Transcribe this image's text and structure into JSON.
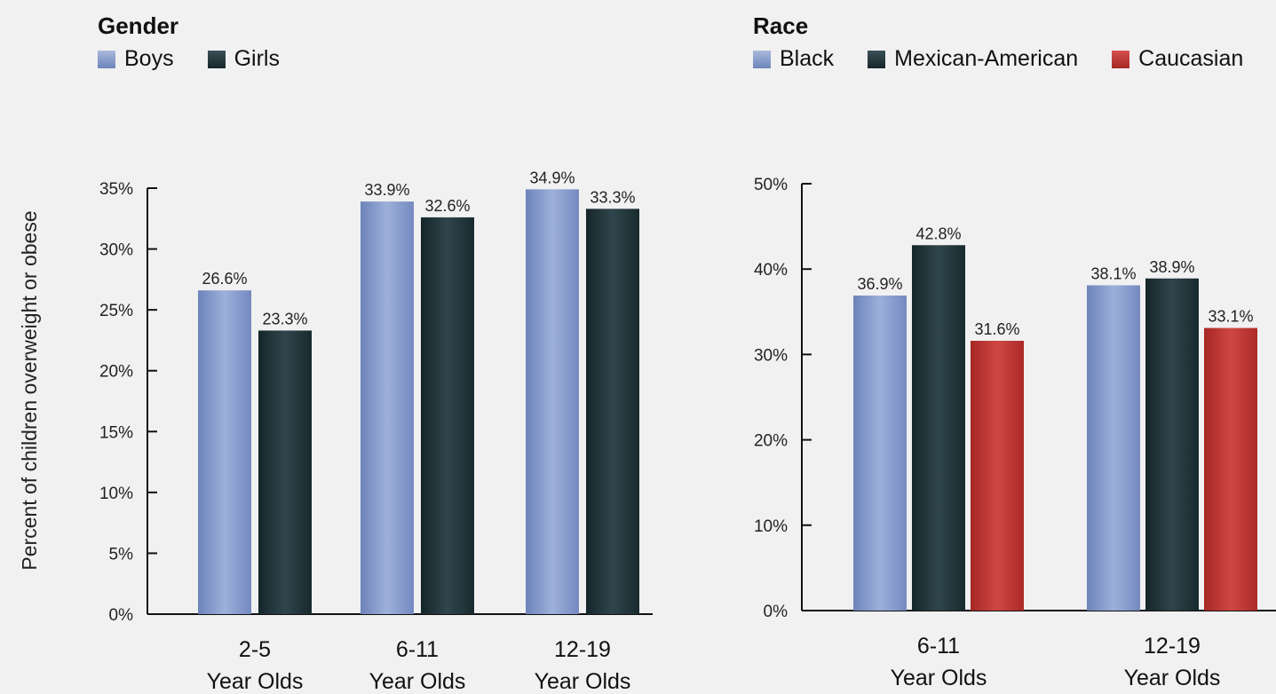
{
  "y_axis_label": "Percent of children overweight or obese",
  "colors": {
    "blue": "#7f95c7",
    "dark": "#1f3237",
    "red": "#b93230"
  },
  "chart_data": [
    {
      "type": "bar",
      "title": "Gender",
      "ylabel": "Percent of children overweight or obese",
      "ylim": [
        0,
        35
      ],
      "yticks": [
        0,
        5,
        10,
        15,
        20,
        25,
        30,
        35
      ],
      "categories": [
        "2-5\nYear Olds",
        "6-11\nYear Olds",
        "12-19\nYear Olds"
      ],
      "series": [
        {
          "name": "Boys",
          "color": "#7f95c7",
          "values": [
            26.6,
            33.9,
            34.9
          ]
        },
        {
          "name": "Girls",
          "color": "#1f3237",
          "values": [
            23.3,
            32.6,
            33.3
          ]
        }
      ],
      "legend": "top-left"
    },
    {
      "type": "bar",
      "title": "Race",
      "ylim": [
        0,
        50
      ],
      "yticks": [
        0,
        10,
        20,
        30,
        40,
        50
      ],
      "categories": [
        "6-11\nYear Olds",
        "12-19\nYear Olds"
      ],
      "series": [
        {
          "name": "Black",
          "color": "#7f95c7",
          "values": [
            36.9,
            38.1
          ]
        },
        {
          "name": "Mexican-American",
          "color": "#1f3237",
          "values": [
            42.8,
            38.9
          ]
        },
        {
          "name": "Caucasian",
          "color": "#b93230",
          "values": [
            31.6,
            33.1
          ]
        }
      ],
      "legend": "top-left"
    }
  ]
}
